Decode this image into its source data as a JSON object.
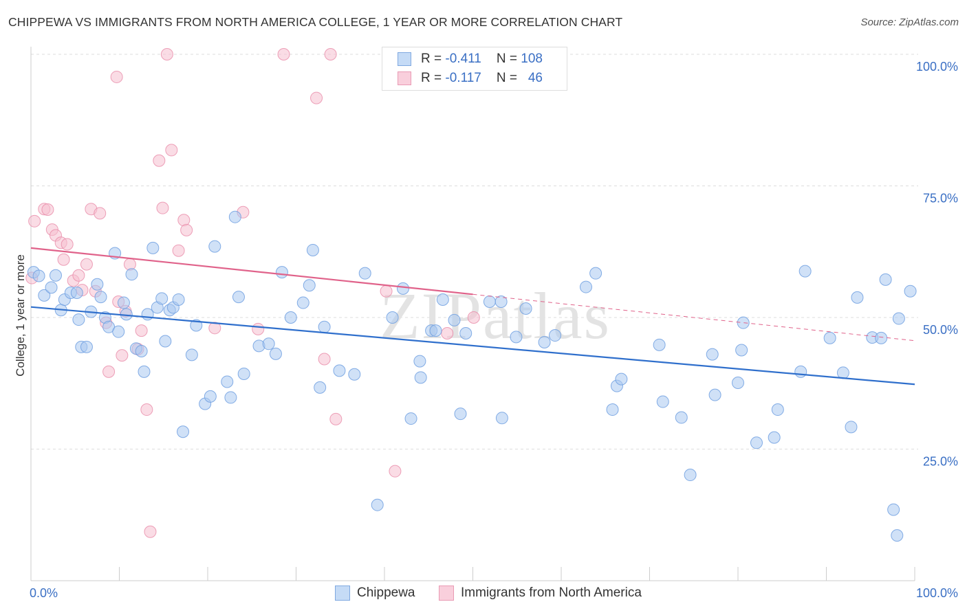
{
  "header": {
    "title": "CHIPPEWA VS IMMIGRANTS FROM NORTH AMERICA COLLEGE, 1 YEAR OR MORE CORRELATION CHART",
    "source": "Source: ZipAtlas.com"
  },
  "legend_box": {
    "rows": [
      {
        "r_label": "R =",
        "r_value": "-0.411",
        "n_label": "N =",
        "n_value": "108"
      },
      {
        "r_label": "R =",
        "r_value": "-0.117",
        "n_label": "N =",
        "n_value": "46"
      }
    ]
  },
  "bottom_legend": {
    "series1": "Chippewa",
    "series2": "Immigrants from North America"
  },
  "colors": {
    "blue_fill": "#a9c8f0",
    "blue_stroke": "#6f9fe0",
    "blue_line": "#2f6fcc",
    "pink_fill": "#f6bfd0",
    "pink_stroke": "#e88aa8",
    "pink_line": "#e0628a",
    "axis_text": "#3a6fc4",
    "grid": "#dddddd"
  },
  "watermark": "ZIPatlas",
  "chart_data": {
    "type": "scatter",
    "title": "CHIPPEWA VS IMMIGRANTS FROM NORTH AMERICA COLLEGE, 1 YEAR OR MORE CORRELATION CHART",
    "xlabel": "",
    "ylabel": "College, 1 year or more",
    "xlim": [
      0,
      100
    ],
    "ylim": [
      0,
      100
    ],
    "x_tick_labels": [
      "0.0%",
      "100.0%"
    ],
    "y_tick_labels": [
      "25.0%",
      "50.0%",
      "75.0%",
      "100.0%"
    ],
    "y_ticks": [
      25,
      50,
      75,
      100
    ],
    "grid": true,
    "legend_position": "top-center",
    "series": [
      {
        "name": "Chippewa",
        "color": "#a9c8f0",
        "trend": {
          "x": [
            0,
            100
          ],
          "y": [
            52.0,
            37.3
          ]
        },
        "points": [
          [
            0.3,
            58.6
          ],
          [
            0.9,
            57.9
          ],
          [
            1.5,
            54.2
          ],
          [
            2.3,
            55.7
          ],
          [
            2.8,
            58.0
          ],
          [
            3.4,
            51.4
          ],
          [
            3.8,
            53.4
          ],
          [
            4.5,
            54.7
          ],
          [
            5.2,
            54.7
          ],
          [
            5.4,
            49.6
          ],
          [
            5.7,
            44.4
          ],
          [
            6.3,
            44.4
          ],
          [
            6.8,
            51.1
          ],
          [
            7.5,
            56.3
          ],
          [
            7.9,
            53.9
          ],
          [
            8.4,
            50.0
          ],
          [
            8.8,
            48.2
          ],
          [
            9.5,
            62.2
          ],
          [
            9.9,
            47.3
          ],
          [
            10.5,
            52.8
          ],
          [
            10.8,
            50.6
          ],
          [
            11.4,
            58.2
          ],
          [
            11.9,
            44.1
          ],
          [
            12.5,
            43.6
          ],
          [
            12.8,
            39.7
          ],
          [
            13.2,
            50.6
          ],
          [
            13.8,
            63.2
          ],
          [
            14.3,
            51.9
          ],
          [
            14.8,
            53.6
          ],
          [
            15.2,
            45.5
          ],
          [
            15.7,
            51.4
          ],
          [
            16.1,
            51.9
          ],
          [
            16.7,
            53.4
          ],
          [
            17.2,
            28.3
          ],
          [
            18.2,
            42.9
          ],
          [
            18.7,
            48.5
          ],
          [
            19.7,
            33.6
          ],
          [
            20.3,
            35.0
          ],
          [
            20.8,
            63.5
          ],
          [
            22.2,
            37.8
          ],
          [
            22.6,
            34.8
          ],
          [
            23.1,
            69.1
          ],
          [
            23.5,
            53.9
          ],
          [
            24.1,
            39.3
          ],
          [
            25.8,
            44.6
          ],
          [
            26.9,
            45.0
          ],
          [
            27.7,
            43.1
          ],
          [
            28.4,
            58.6
          ],
          [
            29.4,
            50.0
          ],
          [
            30.8,
            52.8
          ],
          [
            31.5,
            56.1
          ],
          [
            31.9,
            62.8
          ],
          [
            32.7,
            36.7
          ],
          [
            33.2,
            48.2
          ],
          [
            34.9,
            39.9
          ],
          [
            36.6,
            39.2
          ],
          [
            37.8,
            58.4
          ],
          [
            39.2,
            14.4
          ],
          [
            40.9,
            50.0
          ],
          [
            42.1,
            55.5
          ],
          [
            43.0,
            30.8
          ],
          [
            44.0,
            41.7
          ],
          [
            44.1,
            38.6
          ],
          [
            45.3,
            47.5
          ],
          [
            45.8,
            47.5
          ],
          [
            46.6,
            53.4
          ],
          [
            47.9,
            49.5
          ],
          [
            48.6,
            31.7
          ],
          [
            49.2,
            47.0
          ],
          [
            51.9,
            53.0
          ],
          [
            53.2,
            53.0
          ],
          [
            53.3,
            30.9
          ],
          [
            54.9,
            46.3
          ],
          [
            56.0,
            51.7
          ],
          [
            58.1,
            45.3
          ],
          [
            59.3,
            46.6
          ],
          [
            62.8,
            55.8
          ],
          [
            63.9,
            58.4
          ],
          [
            65.8,
            32.5
          ],
          [
            66.3,
            37.0
          ],
          [
            66.8,
            38.3
          ],
          [
            71.1,
            44.8
          ],
          [
            71.5,
            34.0
          ],
          [
            73.6,
            31.0
          ],
          [
            74.6,
            20.1
          ],
          [
            77.1,
            43.0
          ],
          [
            77.4,
            35.3
          ],
          [
            80.0,
            37.6
          ],
          [
            80.4,
            43.8
          ],
          [
            80.6,
            49.0
          ],
          [
            82.1,
            26.2
          ],
          [
            84.1,
            27.2
          ],
          [
            84.5,
            32.5
          ],
          [
            87.1,
            39.7
          ],
          [
            87.6,
            58.8
          ],
          [
            90.4,
            46.1
          ],
          [
            91.9,
            39.5
          ],
          [
            92.8,
            29.2
          ],
          [
            93.5,
            53.8
          ],
          [
            95.2,
            46.2
          ],
          [
            96.2,
            46.1
          ],
          [
            96.7,
            57.2
          ],
          [
            97.6,
            13.5
          ],
          [
            98.0,
            8.6
          ],
          [
            98.2,
            49.8
          ],
          [
            99.5,
            55.0
          ]
        ]
      },
      {
        "name": "Immigrants from North America",
        "color": "#f6bfd0",
        "trend": {
          "x": [
            0,
            50
          ],
          "y": [
            63.2,
            54.4
          ]
        },
        "trend_dashed": {
          "x": [
            50,
            100
          ],
          "y": [
            54.4,
            45.6
          ]
        },
        "points": [
          [
            0.1,
            57.5
          ],
          [
            0.4,
            68.3
          ],
          [
            1.5,
            70.6
          ],
          [
            1.9,
            70.5
          ],
          [
            2.4,
            66.7
          ],
          [
            2.8,
            65.6
          ],
          [
            3.4,
            64.2
          ],
          [
            3.7,
            61.0
          ],
          [
            4.1,
            63.9
          ],
          [
            4.8,
            57.0
          ],
          [
            5.4,
            58.0
          ],
          [
            5.8,
            55.2
          ],
          [
            6.3,
            60.1
          ],
          [
            6.8,
            70.6
          ],
          [
            7.3,
            55.0
          ],
          [
            7.8,
            69.8
          ],
          [
            8.5,
            49.0
          ],
          [
            8.8,
            39.7
          ],
          [
            9.7,
            95.7
          ],
          [
            9.9,
            53.0
          ],
          [
            10.3,
            42.8
          ],
          [
            10.7,
            51.2
          ],
          [
            11.2,
            60.1
          ],
          [
            12.1,
            44.0
          ],
          [
            12.5,
            47.5
          ],
          [
            13.1,
            32.5
          ],
          [
            13.5,
            9.3
          ],
          [
            14.5,
            79.8
          ],
          [
            14.9,
            70.8
          ],
          [
            15.4,
            100.0
          ],
          [
            15.9,
            81.8
          ],
          [
            16.7,
            62.7
          ],
          [
            17.3,
            68.5
          ],
          [
            17.6,
            66.6
          ],
          [
            20.8,
            48.0
          ],
          [
            24.0,
            70.0
          ],
          [
            25.7,
            47.8
          ],
          [
            28.6,
            100.0
          ],
          [
            32.3,
            91.7
          ],
          [
            33.2,
            42.1
          ],
          [
            33.9,
            100.0
          ],
          [
            34.5,
            30.7
          ],
          [
            40.2,
            55.0
          ],
          [
            41.2,
            20.8
          ],
          [
            47.1,
            47.0
          ],
          [
            50.1,
            50.0
          ]
        ]
      }
    ]
  }
}
